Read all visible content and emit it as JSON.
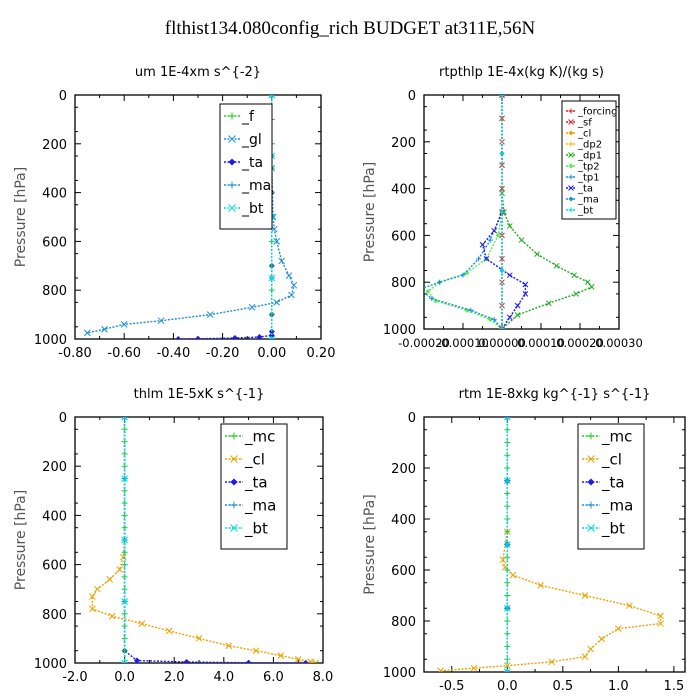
{
  "page": {
    "title": "flthist134.080config_rich  BUDGET at311E,56N"
  },
  "colors": {
    "_f": "#22cc22",
    "_gl": "#1a8fd8",
    "_ta": "#1a1aee",
    "_ma": "#1a8fd8",
    "_bt": "#00dddd",
    "_forcing": "#e02020",
    "_sf": "#e02020",
    "_cl": "#f0a000",
    "_dp2": "#f0c000",
    "_dp1": "#22aa22",
    "_tp2": "#55ee55",
    "_tp1": "#1a8fd8",
    "_mc": "#22cc22"
  },
  "chart_data": [
    {
      "type": "line",
      "title": "um   1E-4xm s^{-2}",
      "xlabel": "",
      "ylabel": "Pressure [hPa]",
      "xlim": [
        -0.8,
        0.2
      ],
      "ylim": [
        0,
        1000
      ],
      "y_inverted": true,
      "xticks": [
        -0.8,
        -0.6,
        -0.4,
        -0.2,
        0.0,
        0.2
      ],
      "xtick_labels": [
        "-0.80",
        "-0.60",
        "-0.40",
        "-0.20",
        "0.00",
        "0.20"
      ],
      "yticks": [
        0,
        200,
        400,
        600,
        800,
        1000
      ],
      "ytick_labels": [
        "0",
        "200",
        "400",
        "600",
        "800",
        "1000"
      ],
      "legend_position": "top-right",
      "series": [
        {
          "name": "_f",
          "color_key": "_f",
          "x": [
            0,
            0,
            0,
            0,
            0,
            0,
            0,
            0,
            0,
            0,
            0
          ],
          "y": [
            0,
            100,
            200,
            300,
            400,
            500,
            600,
            700,
            800,
            900,
            1000
          ]
        },
        {
          "name": "_gl",
          "color_key": "_gl",
          "x": [
            0,
            0,
            0.005,
            0.01,
            0.02,
            0.04,
            0.07,
            0.09,
            0.08,
            0.02,
            -0.08,
            -0.25,
            -0.45,
            -0.6,
            -0.68,
            -0.75
          ],
          "y": [
            0,
            300,
            500,
            550,
            600,
            680,
            740,
            780,
            820,
            850,
            870,
            900,
            925,
            940,
            960,
            975
          ]
        },
        {
          "name": "_ta",
          "color_key": "_ta",
          "x": [
            0,
            0,
            0,
            0,
            0,
            0,
            -0.05,
            -0.15,
            -0.3,
            -0.38
          ],
          "y": [
            0,
            400,
            700,
            900,
            970,
            985,
            992,
            996,
            999,
            1000
          ]
        },
        {
          "name": "_ma",
          "color_key": "_ma",
          "x": [
            0,
            0,
            0,
            0,
            0
          ],
          "y": [
            0,
            250,
            500,
            750,
            1000
          ]
        },
        {
          "name": "_bt",
          "color_key": "_bt",
          "x": [
            0,
            0,
            0,
            0,
            0
          ],
          "y": [
            0,
            250,
            500,
            750,
            1000
          ]
        }
      ]
    },
    {
      "type": "line",
      "title": "rtpthlp   1E-4x(kg K)/(kg s)",
      "xlabel": "",
      "ylabel": "Pressure [hPa]",
      "xlim": [
        -0.0002,
        0.0003
      ],
      "ylim": [
        0,
        1000
      ],
      "y_inverted": true,
      "xticks": [
        -0.0002,
        -0.0001,
        0.0,
        0.0001,
        0.0002,
        0.0003
      ],
      "xtick_labels": [
        "-0.00020",
        "-0.00010",
        "0.00000",
        "0.00010",
        "0.00020",
        "0.00030"
      ],
      "yticks": [
        0,
        200,
        400,
        600,
        800,
        1000
      ],
      "ytick_labels": [
        "0",
        "200",
        "400",
        "600",
        "800",
        "1000"
      ],
      "legend_position": "top-right",
      "series": [
        {
          "name": "_forcing",
          "color_key": "_forcing",
          "x": [
            0,
            0,
            0,
            0,
            0
          ],
          "y": [
            0,
            250,
            500,
            750,
            1000
          ]
        },
        {
          "name": "_sf",
          "color_key": "_sf",
          "x": [
            0,
            0,
            0,
            0,
            0,
            0,
            0,
            0,
            0,
            0,
            0
          ],
          "y": [
            0,
            100,
            200,
            300,
            400,
            500,
            600,
            700,
            800,
            900,
            1000
          ]
        },
        {
          "name": "_cl",
          "color_key": "_cl",
          "x": [
            0,
            0,
            0,
            0,
            0
          ],
          "y": [
            0,
            250,
            500,
            750,
            1000
          ]
        },
        {
          "name": "_dp2",
          "color_key": "_dp2",
          "x": [
            0,
            0,
            0,
            0,
            0
          ],
          "y": [
            0,
            250,
            500,
            750,
            1000
          ]
        },
        {
          "name": "_dp1",
          "color_key": "_dp1",
          "x": [
            0,
            0,
            0,
            5e-06,
            2e-05,
            5e-05,
            9e-05,
            0.00014,
            0.000185,
            0.00022,
            0.00023,
            0.00019,
            0.00012,
            4e-05,
            0
          ],
          "y": [
            0,
            300,
            420,
            500,
            560,
            620,
            680,
            730,
            770,
            800,
            820,
            850,
            890,
            940,
            1000
          ]
        },
        {
          "name": "_tp2",
          "color_key": "_tp2",
          "x": [
            0,
            0,
            -1e-05,
            -4e-05,
            -9e-05,
            -0.00016,
            -0.00019,
            -0.00017,
            -9e-05,
            -3e-05,
            0
          ],
          "y": [
            0,
            500,
            600,
            700,
            760,
            800,
            840,
            880,
            920,
            960,
            1000
          ]
        },
        {
          "name": "_tp1",
          "color_key": "_tp1",
          "x": [
            0,
            0,
            -3e-05,
            -6e-05,
            -0.0001,
            -0.00016,
            -0.00021,
            -0.00018,
            -8e-05,
            -2e-05,
            0
          ],
          "y": [
            0,
            500,
            620,
            700,
            770,
            800,
            830,
            870,
            920,
            960,
            1000
          ]
        },
        {
          "name": "_ta",
          "color_key": "_ta",
          "x": [
            0,
            0,
            -2e-05,
            -5e-05,
            -4e-05,
            2e-05,
            6e-05,
            6e-05,
            4e-05,
            2e-05,
            0
          ],
          "y": [
            0,
            500,
            580,
            640,
            700,
            770,
            810,
            850,
            900,
            950,
            1000
          ]
        },
        {
          "name": "_ma",
          "color_key": "_ma",
          "x": [
            0,
            0,
            0,
            0,
            0
          ],
          "y": [
            0,
            250,
            500,
            750,
            1000
          ]
        },
        {
          "name": "_bt",
          "color_key": "_bt",
          "x": [
            0,
            0,
            0,
            0,
            0
          ],
          "y": [
            0,
            250,
            500,
            750,
            1000
          ]
        }
      ]
    },
    {
      "type": "line",
      "title": "thlm   1E-5xK s^{-1}",
      "xlabel": "",
      "ylabel": "Pressure [hPa]",
      "xlim": [
        -2.0,
        8.0
      ],
      "ylim": [
        0,
        1000
      ],
      "y_inverted": true,
      "xticks": [
        -2.0,
        0.0,
        2.0,
        4.0,
        6.0,
        8.0
      ],
      "xtick_labels": [
        "-2.0",
        "0.0",
        "2.0",
        "4.0",
        "6.0",
        "8.0"
      ],
      "yticks": [
        0,
        200,
        400,
        600,
        800,
        1000
      ],
      "ytick_labels": [
        "0",
        "200",
        "400",
        "600",
        "800",
        "1000"
      ],
      "legend_position": "top-right",
      "series": [
        {
          "name": "_mc",
          "color_key": "_mc",
          "x": [
            0,
            0,
            0,
            0,
            0,
            0,
            0,
            0,
            0,
            0,
            0,
            0,
            0,
            0,
            0,
            0,
            0,
            0,
            0,
            0,
            0
          ],
          "y": [
            0,
            50,
            100,
            150,
            200,
            250,
            300,
            350,
            400,
            450,
            500,
            550,
            600,
            650,
            700,
            750,
            800,
            850,
            900,
            950,
            1000
          ]
        },
        {
          "name": "_cl",
          "color_key": "_cl",
          "x": [
            0,
            0,
            -0.05,
            -0.2,
            -0.6,
            -1.1,
            -1.3,
            -1.3,
            -0.5,
            0.7,
            1.8,
            3.0,
            4.2,
            5.3,
            6.3,
            7.0,
            7.5,
            7.7
          ],
          "y": [
            0,
            500,
            570,
            620,
            660,
            700,
            730,
            780,
            810,
            840,
            870,
            900,
            930,
            950,
            970,
            985,
            995,
            1000
          ]
        },
        {
          "name": "_ta",
          "color_key": "_ta",
          "x": [
            0,
            0,
            0.5,
            2.5,
            5.0,
            7.3
          ],
          "y": [
            0,
            950,
            990,
            996,
            999,
            1000
          ]
        },
        {
          "name": "_ma",
          "color_key": "_ma",
          "x": [
            0,
            0,
            0,
            0,
            0
          ],
          "y": [
            0,
            250,
            500,
            750,
            1000
          ]
        },
        {
          "name": "_bt",
          "color_key": "_bt",
          "x": [
            0,
            0,
            0,
            0,
            0
          ],
          "y": [
            0,
            250,
            500,
            750,
            1000
          ]
        }
      ]
    },
    {
      "type": "line",
      "title": "rtm   1E-8xkg kg^{-1} s^{-1}",
      "xlabel": "",
      "ylabel": "Pressure [hPa]",
      "xlim": [
        -0.75,
        1.6
      ],
      "ylim": [
        0,
        1000
      ],
      "y_inverted": true,
      "xticks": [
        -0.5,
        0.0,
        0.5,
        1.0,
        1.5
      ],
      "xtick_labels": [
        "-0.5",
        "0.0",
        "0.5",
        "1.0",
        "1.5"
      ],
      "yticks": [
        0,
        200,
        400,
        600,
        800,
        1000
      ],
      "ytick_labels": [
        "0",
        "200",
        "400",
        "600",
        "800",
        "1000"
      ],
      "legend_position": "top-right",
      "series": [
        {
          "name": "_mc",
          "color_key": "_mc",
          "x": [
            0,
            0,
            0,
            0,
            0,
            0,
            0,
            0,
            0,
            0,
            0,
            0,
            0,
            0,
            0,
            0,
            0,
            0,
            0,
            0,
            0
          ],
          "y": [
            0,
            50,
            100,
            150,
            200,
            250,
            300,
            350,
            400,
            450,
            500,
            550,
            600,
            650,
            700,
            750,
            800,
            850,
            900,
            950,
            1000
          ]
        },
        {
          "name": "_cl",
          "color_key": "_cl",
          "x": [
            0,
            0,
            -0.04,
            -0.02,
            0.05,
            0.3,
            0.7,
            1.1,
            1.38,
            1.38,
            1.0,
            0.85,
            0.75,
            0.7,
            0.4,
            0.0,
            -0.3,
            -0.6
          ],
          "y": [
            0,
            450,
            560,
            590,
            620,
            660,
            700,
            740,
            780,
            810,
            830,
            870,
            910,
            940,
            960,
            975,
            985,
            995
          ]
        },
        {
          "name": "_ta",
          "color_key": "_ta",
          "x": [
            0,
            0,
            0,
            0,
            0
          ],
          "y": [
            0,
            250,
            500,
            750,
            1000
          ]
        },
        {
          "name": "_ma",
          "color_key": "_ma",
          "x": [
            0,
            0,
            0,
            0,
            0
          ],
          "y": [
            0,
            250,
            500,
            750,
            1000
          ]
        },
        {
          "name": "_bt",
          "color_key": "_bt",
          "x": [
            0,
            0,
            0,
            0,
            0
          ],
          "y": [
            0,
            250,
            500,
            750,
            1000
          ]
        }
      ]
    }
  ]
}
